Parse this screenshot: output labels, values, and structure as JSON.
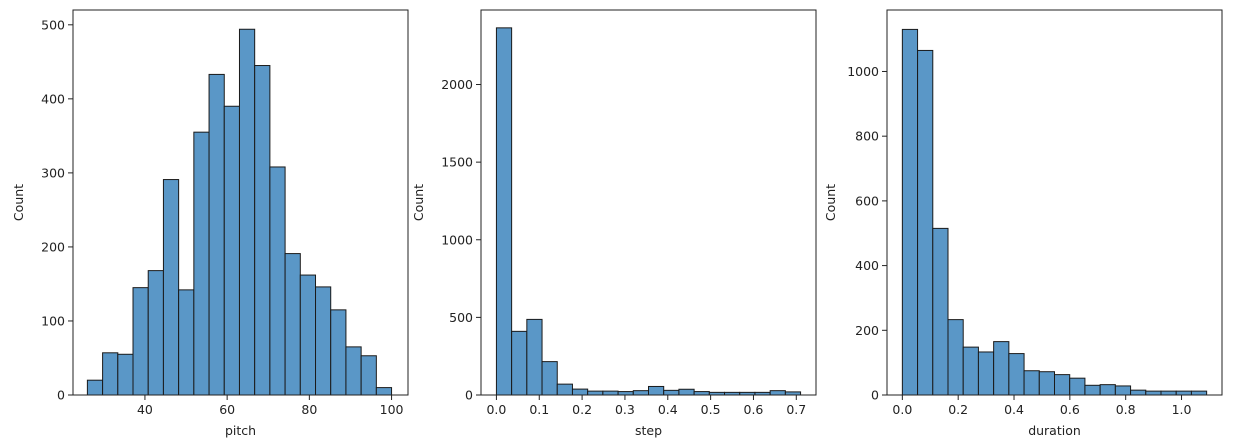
{
  "colors": {
    "bar_fill": "#5a97c7",
    "bar_edge": "#1a1a1a",
    "axes": "#222222"
  },
  "chart_data": [
    {
      "type": "bar",
      "histogram": true,
      "xlabel": "pitch",
      "ylabel": "Count",
      "bin_start": 26,
      "bin_width": 3.7,
      "values": [
        20,
        57,
        55,
        145,
        168,
        291,
        142,
        355,
        433,
        390,
        494,
        445,
        308,
        191,
        162,
        146,
        115,
        65,
        53,
        10
      ],
      "xlim": [
        22.5,
        104
      ],
      "ylim": [
        0,
        520
      ],
      "xticks": [
        40,
        60,
        80,
        100
      ],
      "yticks": [
        0,
        100,
        200,
        300,
        400,
        500
      ],
      "xtick_labels": [
        "40",
        "60",
        "80",
        "100"
      ],
      "ytick_labels": [
        "0",
        "100",
        "200",
        "300",
        "400",
        "500"
      ]
    },
    {
      "type": "bar",
      "histogram": true,
      "xlabel": "step",
      "ylabel": "Count",
      "bin_start": 0,
      "bin_width": 0.0355,
      "values": [
        2365,
        410,
        487,
        215,
        70,
        38,
        25,
        25,
        22,
        28,
        55,
        30,
        37,
        22,
        17,
        17,
        17,
        17,
        28,
        20
      ],
      "xlim": [
        -0.036,
        0.746
      ],
      "ylim": [
        0,
        2480
      ],
      "xticks": [
        0.0,
        0.1,
        0.2,
        0.3,
        0.4,
        0.5,
        0.6,
        0.7
      ],
      "yticks": [
        0,
        500,
        1000,
        1500,
        2000
      ],
      "xtick_labels": [
        "0.0",
        "0.1",
        "0.2",
        "0.3",
        "0.4",
        "0.5",
        "0.6",
        "0.7"
      ],
      "ytick_labels": [
        "0",
        "500",
        "1000",
        "1500",
        "2000"
      ]
    },
    {
      "type": "bar",
      "histogram": true,
      "xlabel": "duration",
      "ylabel": "Count",
      "bin_start": 0,
      "bin_width": 0.0545,
      "values": [
        1130,
        1065,
        515,
        233,
        148,
        133,
        165,
        128,
        75,
        72,
        63,
        52,
        30,
        32,
        28,
        15,
        12,
        12,
        12,
        12
      ],
      "xlim": [
        -0.055,
        1.145
      ],
      "ylim": [
        0,
        1190
      ],
      "xticks": [
        0.0,
        0.2,
        0.4,
        0.6,
        0.8,
        1.0
      ],
      "yticks": [
        0,
        200,
        400,
        600,
        800,
        1000
      ],
      "xtick_labels": [
        "0.0",
        "0.2",
        "0.4",
        "0.6",
        "0.8",
        "1.0"
      ],
      "ytick_labels": [
        "0",
        "200",
        "400",
        "600",
        "800",
        "1000"
      ]
    }
  ]
}
